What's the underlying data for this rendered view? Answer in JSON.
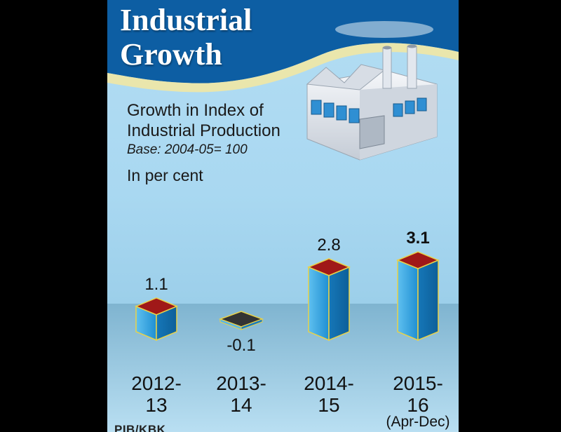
{
  "colors": {
    "header_bg": "#0d5ea3",
    "bar_front": "#1e93d6",
    "bar_side": "#0f6fae",
    "bar_top_positive": "#a01818",
    "bar_top_negative": "#333333",
    "bar_edge": "#e8d24a"
  },
  "icons": [
    "factory-illustration"
  ],
  "header": {
    "title_line1": "Industrial",
    "title_line2": "Growth"
  },
  "chart_data": {
    "type": "bar",
    "title": "Industrial Growth",
    "subtitle": "Growth in Index of Industrial Production",
    "base_note": "Base: 2004-05= 100",
    "unit_label": "In per cent",
    "categories": [
      "2012-13",
      "2013-14",
      "2014-15",
      "2015-16"
    ],
    "category_lines": [
      [
        "2012-",
        "13"
      ],
      [
        "2013-",
        "14"
      ],
      [
        "2014-",
        "15"
      ],
      [
        "2015-",
        "16"
      ]
    ],
    "category_note": "(Apr-Dec)",
    "values": [
      1.1,
      -0.1,
      2.8,
      3.1
    ],
    "value_labels": [
      "1.1",
      "-0.1",
      "2.8",
      "3.1"
    ],
    "highlight_index": 3,
    "ylim": [
      -0.2,
      3.3
    ],
    "grid": false
  },
  "credit": "PIB/KBK"
}
